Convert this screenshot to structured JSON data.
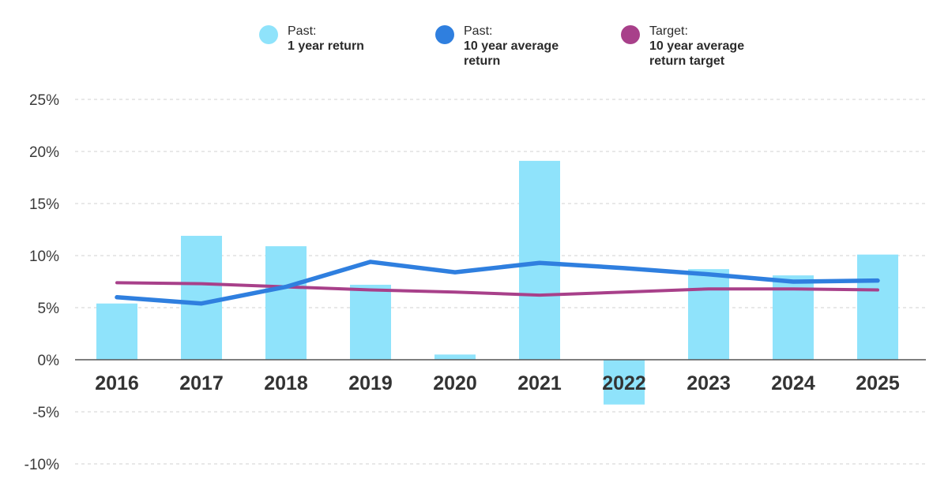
{
  "legend": [
    {
      "head": "Past:",
      "desc": "1 year return",
      "color": "#8fe3fb"
    },
    {
      "head": "Past:",
      "desc": "10 year average return",
      "color": "#2f7fdf"
    },
    {
      "head": "Target:",
      "desc": "10 year average return target",
      "color": "#a8408a"
    }
  ],
  "chart_data": {
    "type": "bar",
    "categories": [
      "2016",
      "2017",
      "2018",
      "2019",
      "2020",
      "2021",
      "2022",
      "2023",
      "2024",
      "2025"
    ],
    "ylim": [
      -10,
      25
    ],
    "yticks": [
      25,
      20,
      15,
      10,
      5,
      0,
      -5,
      -10
    ],
    "ytick_labels": [
      "25%",
      "20%",
      "15%",
      "10%",
      "5%",
      "0%",
      "-5%",
      "-10%"
    ],
    "grid": true,
    "legend_position": "top",
    "series": [
      {
        "name": "Past: 1 year return",
        "type": "bar",
        "color": "#8fe3fb",
        "values": [
          5.4,
          11.9,
          10.9,
          7.2,
          0.5,
          19.1,
          -4.3,
          8.7,
          8.1,
          10.1
        ]
      },
      {
        "name": "Past: 10 year average return",
        "type": "line",
        "color": "#2f7fdf",
        "values": [
          6.0,
          5.4,
          7.0,
          9.4,
          8.4,
          9.3,
          8.8,
          8.2,
          7.5,
          7.6
        ]
      },
      {
        "name": "Target: 10 year average return target",
        "type": "line",
        "color": "#a8408a",
        "values": [
          7.4,
          7.3,
          7.0,
          6.7,
          6.5,
          6.2,
          6.5,
          6.8,
          6.8,
          6.7
        ]
      }
    ]
  }
}
